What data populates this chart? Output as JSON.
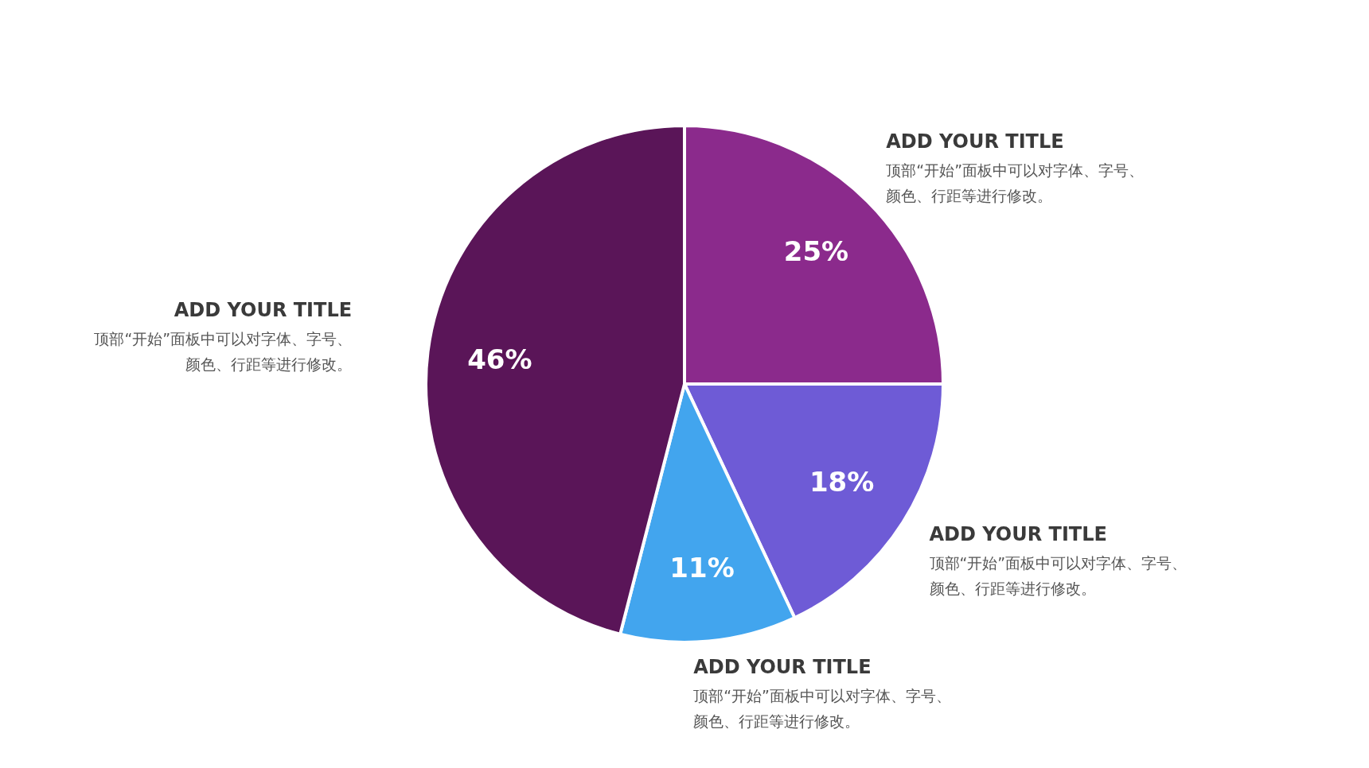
{
  "chart_data": {
    "type": "pie",
    "categories": [
      "ADD YOUR TITLE",
      "ADD YOUR TITLE",
      "ADD YOUR TITLE",
      "ADD YOUR TITLE"
    ],
    "values": [
      25,
      18,
      11,
      46
    ],
    "value_labels": [
      "25%",
      "18%",
      "11%",
      "46%"
    ],
    "colors": [
      "#8b2a8c",
      "#6e5bd6",
      "#42a5ee",
      "#5a1558"
    ],
    "annotations": [
      "顶部“开始”面板中可以对字体、字号、颜色、行距等进行修改。",
      "顶部“开始”面板中可以对字体、字号、颜色、行距等进行修改。",
      "顶部“开始”面板中可以对字体、字号、颜色、行距等进行修改。",
      "顶部“开始”面板中可以对字体、字号、颜色、行距等进行修改。"
    ]
  }
}
